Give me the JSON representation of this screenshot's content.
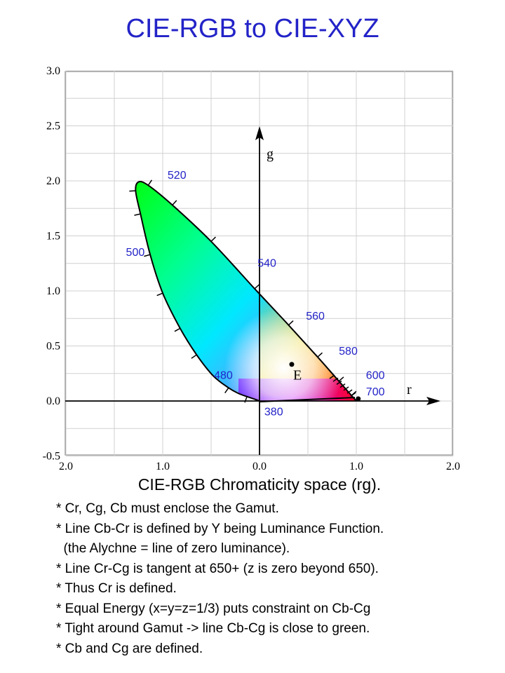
{
  "page": {
    "title": "CIE-RGB to CIE-XYZ",
    "caption": "CIE-RGB Chromaticity space (rg).",
    "notes": [
      "* Cr, Cg, Cb must enclose the Gamut.",
      "* Line Cb-Cr is defined by Y being Luminance Function.",
      "  (the Alychne = line of zero luminance).",
      "* Line Cr-Cg is tangent at 650+ (z is zero beyond 650).",
      "* Thus Cr is defined.",
      "* Equal Energy (x=y=z=1/3) puts constraint on Cb-Cg",
      "* Tight around Gamut -> line Cb-Cg is close to green.",
      "* Cb and Cg are defined."
    ]
  },
  "chart_data": {
    "type": "scatter",
    "x_axis": {
      "name": "r",
      "range": [
        -2.0,
        2.0
      ],
      "tick_labels": [
        "2.0",
        "1.0",
        "0.0",
        "1.0",
        "2.0"
      ]
    },
    "y_axis": {
      "name": "g",
      "range": [
        -0.5,
        3.0
      ],
      "tick_labels": [
        "-0.5",
        "0.0",
        "0.5",
        "1.0",
        "1.5",
        "2.0",
        "2.5",
        "3.0"
      ]
    },
    "grid": true,
    "wavelength_labels": [
      {
        "label": "380",
        "r": 0.05,
        "g": -0.13
      },
      {
        "label": "480",
        "r": -0.47,
        "g": 0.2
      },
      {
        "label": "500",
        "r": -1.38,
        "g": 1.32
      },
      {
        "label": "520",
        "r": -0.95,
        "g": 2.02
      },
      {
        "label": "540",
        "r": -0.02,
        "g": 1.22
      },
      {
        "label": "560",
        "r": 0.48,
        "g": 0.74
      },
      {
        "label": "580",
        "r": 0.82,
        "g": 0.42
      },
      {
        "label": "600",
        "r": 1.1,
        "g": 0.2
      },
      {
        "label": "700",
        "r": 1.1,
        "g": 0.05
      }
    ],
    "points": [
      {
        "label": "E",
        "r": 0.333,
        "g": 0.333
      }
    ],
    "spectral_locus": [
      [
        0.0,
        0.0
      ],
      [
        -0.06,
        0.02
      ],
      [
        -0.13,
        0.04
      ],
      [
        -0.22,
        0.07
      ],
      [
        -0.32,
        0.12
      ],
      [
        -0.48,
        0.23
      ],
      [
        -0.65,
        0.42
      ],
      [
        -0.82,
        0.66
      ],
      [
        -1.0,
        0.98
      ],
      [
        -1.13,
        1.33
      ],
      [
        -1.23,
        1.7
      ],
      [
        -1.28,
        1.91
      ],
      [
        -1.25,
        1.99
      ],
      [
        -1.15,
        1.96
      ],
      [
        -0.9,
        1.78
      ],
      [
        -0.5,
        1.45
      ],
      [
        -0.05,
        1.02
      ],
      [
        0.3,
        0.69
      ],
      [
        0.6,
        0.4
      ],
      [
        0.82,
        0.18
      ],
      [
        0.95,
        0.05
      ],
      [
        1.0,
        0.0
      ]
    ]
  }
}
